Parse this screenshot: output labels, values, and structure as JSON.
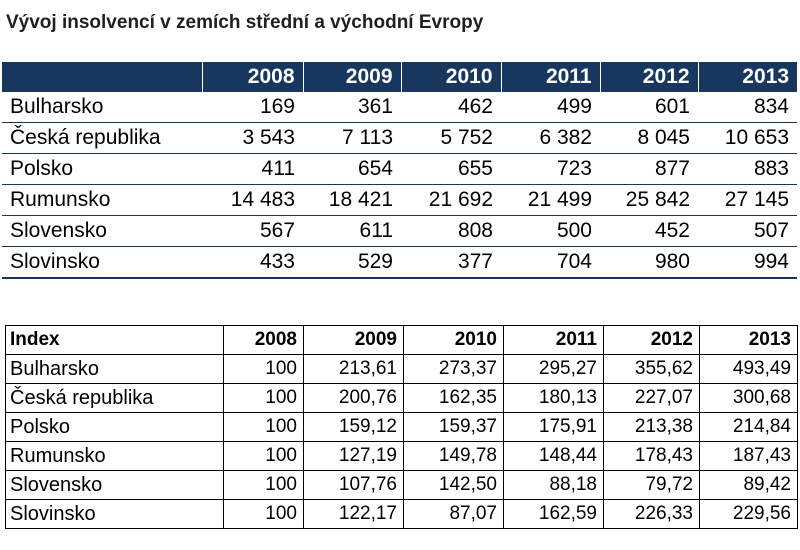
{
  "title": "Vývoj insolvencí v zemích střední a východní Evropy",
  "table_counts": {
    "corner": "",
    "years": [
      "2008",
      "2009",
      "2010",
      "2011",
      "2012",
      "2013"
    ],
    "rows": [
      {
        "country": "Bulharsko",
        "values": [
          "169",
          "361",
          "462",
          "499",
          "601",
          "834"
        ]
      },
      {
        "country": "Česká republika",
        "values": [
          "3 543",
          "7 113",
          "5 752",
          "6 382",
          "8 045",
          "10 653"
        ]
      },
      {
        "country": "Polsko",
        "values": [
          "411",
          "654",
          "655",
          "723",
          "877",
          "883"
        ]
      },
      {
        "country": "Rumunsko",
        "values": [
          "14 483",
          "18 421",
          "21 692",
          "21 499",
          "25 842",
          "27 145"
        ]
      },
      {
        "country": "Slovensko",
        "values": [
          "567",
          "611",
          "808",
          "500",
          "452",
          "507"
        ]
      },
      {
        "country": "Slovinsko",
        "values": [
          "433",
          "529",
          "377",
          "704",
          "980",
          "994"
        ]
      }
    ]
  },
  "table_index": {
    "corner": "Index",
    "years": [
      "2008",
      "2009",
      "2010",
      "2011",
      "2012",
      "2013"
    ],
    "rows": [
      {
        "country": "Bulharsko",
        "values": [
          "100",
          "213,61",
          "273,37",
          "295,27",
          "355,62",
          "493,49"
        ]
      },
      {
        "country": "Česká republika",
        "values": [
          "100",
          "200,76",
          "162,35",
          "180,13",
          "227,07",
          "300,68"
        ]
      },
      {
        "country": "Polsko",
        "values": [
          "100",
          "159,12",
          "159,37",
          "175,91",
          "213,38",
          "214,84"
        ]
      },
      {
        "country": "Rumunsko",
        "values": [
          "100",
          "127,19",
          "149,78",
          "148,44",
          "178,43",
          "187,43"
        ]
      },
      {
        "country": "Slovensko",
        "values": [
          "100",
          "107,76",
          "142,50",
          "88,18",
          "79,72",
          "89,42"
        ]
      },
      {
        "country": "Slovinsko",
        "values": [
          "100",
          "122,17",
          "87,07",
          "162,59",
          "226,33",
          "229,56"
        ]
      }
    ]
  },
  "colors": {
    "header_fill": "#17375e",
    "header_text": "#ffffff"
  }
}
